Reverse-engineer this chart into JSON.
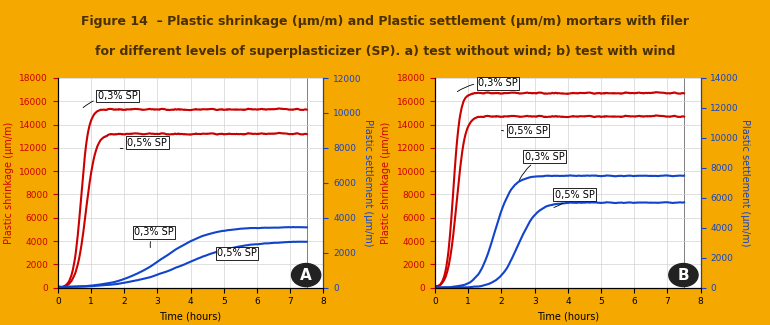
{
  "title_line1": "Figure 14  – Plastic shrinkage (µm/m) and Plastic settlement (µm/m) mortars with filer",
  "title_line2": "for different levels of superplasticizer (SP). a) test without wind; b) test with wind",
  "title_bg": "#F5A800",
  "title_color": "#4a3000",
  "panel_A": {
    "ylabel_left": "Plastic shrinkage (µm/m)",
    "ylabel_right": "Plastic settlement (µm/m)",
    "xlabel": "Time (hours)",
    "ylim_left": [
      0,
      18000
    ],
    "ylim_right": [
      0,
      12000
    ],
    "yticks_left": [
      0,
      2000,
      4000,
      6000,
      8000,
      10000,
      12000,
      14000,
      16000,
      18000
    ],
    "yticks_right": [
      0,
      2000,
      4000,
      6000,
      8000,
      10000,
      12000
    ],
    "xlim": [
      0,
      8
    ],
    "xticks": [
      0,
      1,
      2,
      3,
      4,
      5,
      6,
      7,
      8
    ],
    "red_03_plateau": 15300,
    "red_05_plateau": 13200,
    "blue_03_plateau": 5200,
    "blue_05_plateau": 4000,
    "label": "A"
  },
  "panel_B": {
    "ylabel_left": "Plastic shrinkage (µm/m)",
    "ylabel_right": "Plastic settlement (µm/m)",
    "xlabel": "Time (hours)",
    "ylim_left": [
      0,
      18000
    ],
    "ylim_right": [
      0,
      14000
    ],
    "yticks_left": [
      0,
      2000,
      4000,
      6000,
      8000,
      10000,
      12000,
      14000,
      16000,
      18000
    ],
    "yticks_right": [
      0,
      2000,
      4000,
      6000,
      8000,
      10000,
      12000,
      14000
    ],
    "xlim": [
      0,
      8
    ],
    "xticks": [
      0,
      1,
      2,
      3,
      4,
      5,
      6,
      7,
      8
    ],
    "red_03_plateau": 16700,
    "red_05_plateau": 14700,
    "blue_03_plateau": 9600,
    "blue_05_plateau": 7300,
    "label": "B"
  },
  "red_color": "#cc0000",
  "blue_color": "#1144cc",
  "line_width": 1.5,
  "annot_fontsize": 7,
  "axis_label_fontsize": 7,
  "tick_fontsize": 6.5,
  "title_fontsize": 9
}
